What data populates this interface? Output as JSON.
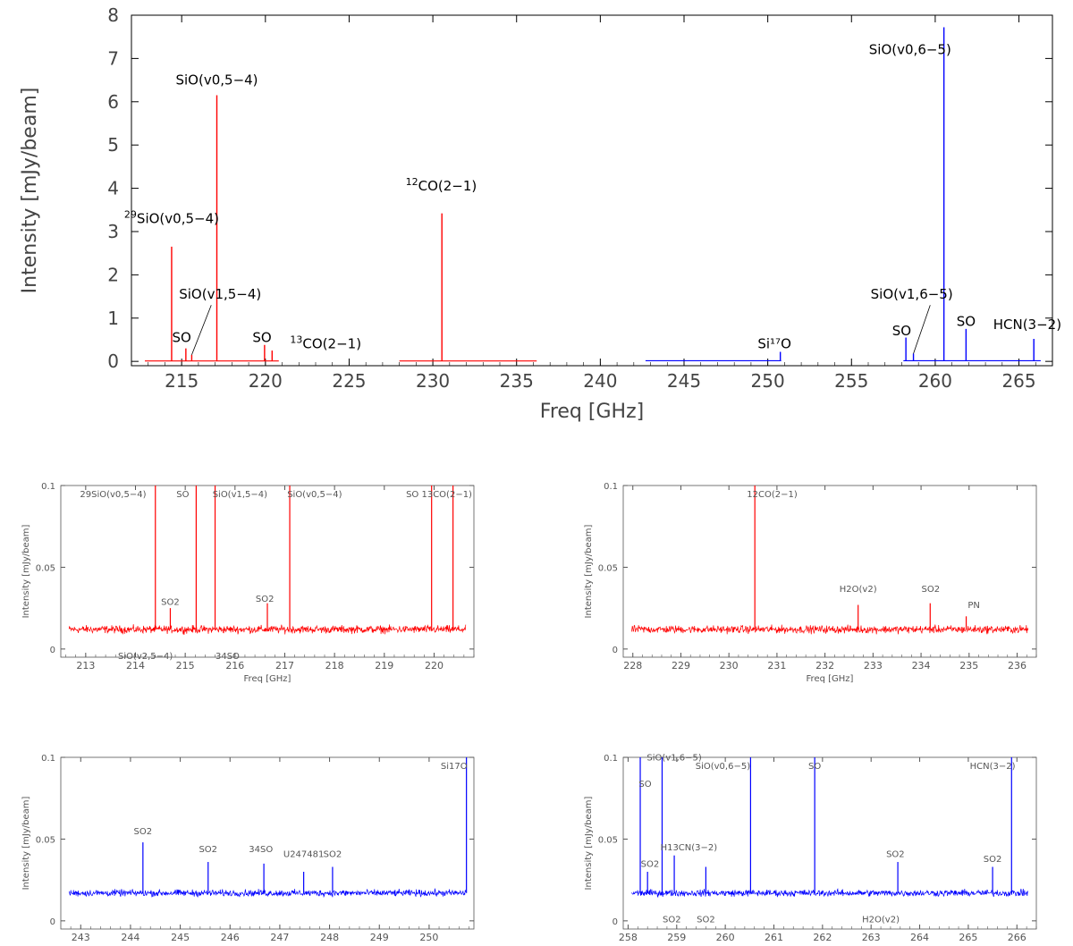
{
  "colors": {
    "lsb": "#ff0000",
    "usb": "#0000ff",
    "axis": "#000000",
    "label": "#555555"
  },
  "chart_data": [
    {
      "id": "overview",
      "type": "line",
      "xlabel": "Freq [GHz]",
      "ylabel": "Intensity [mJy/beam]",
      "xlim": [
        212,
        267
      ],
      "ylim": [
        -0.1,
        8
      ],
      "xticks": [
        215,
        220,
        225,
        230,
        235,
        240,
        245,
        250,
        255,
        260,
        265
      ],
      "yticks": [
        0,
        1,
        2,
        3,
        4,
        5,
        6,
        7,
        8
      ],
      "series": [
        {
          "color": "#ff0000",
          "x_range": [
            212.8,
            220.8
          ],
          "baseline": 0.01,
          "lines": [
            [
              214.4,
              2.65
            ],
            [
              215.25,
              0.3
            ],
            [
              215.6,
              0.15
            ],
            [
              217.1,
              6.15
            ],
            [
              219.95,
              0.38
            ],
            [
              220.4,
              0.25
            ]
          ]
        },
        {
          "color": "#ff0000",
          "x_range": [
            228.0,
            236.2
          ],
          "baseline": 0.01,
          "lines": [
            [
              230.54,
              3.42
            ]
          ]
        },
        {
          "color": "#0000ff",
          "x_range": [
            242.7,
            250.8
          ],
          "baseline": 0.015,
          "lines": [
            [
              250.75,
              0.22
            ]
          ]
        },
        {
          "color": "#0000ff",
          "x_range": [
            258.1,
            266.3
          ],
          "baseline": 0.015,
          "lines": [
            [
              258.25,
              0.55
            ],
            [
              258.7,
              0.18
            ],
            [
              260.52,
              7.72
            ],
            [
              261.84,
              0.75
            ],
            [
              265.89,
              0.52
            ]
          ]
        }
      ],
      "annotations": [
        {
          "text": "29SiO(v0,5-4)",
          "sup": "29",
          "main": "SiO(v0,5−4)",
          "x": 214.4,
          "y": 3.2
        },
        {
          "text": "SiO(v0,5-4)",
          "sup": "",
          "main": "SiO(v0,5−4)",
          "x": 217.1,
          "y": 6.4
        },
        {
          "text": "SiO(v1,5-4)",
          "sup": "",
          "main": "SiO(v1,5−4)",
          "x": 217.3,
          "y": 1.45
        },
        {
          "text": "SO",
          "sup": "",
          "main": "SO",
          "x": 215.0,
          "y": 0.45
        },
        {
          "text": "SO",
          "sup": "",
          "main": "SO",
          "x": 219.8,
          "y": 0.45
        },
        {
          "text": "13CO(2-1)",
          "sup": "13",
          "main": "CO(2−1)",
          "x": 223.6,
          "y": 0.3
        },
        {
          "text": "12CO(2-1)",
          "sup": "12",
          "main": "CO(2−1)",
          "x": 230.5,
          "y": 3.95
        },
        {
          "text": "Si17O",
          "sup": "",
          "main": "Si¹⁷O",
          "x": 250.4,
          "y": 0.3
        },
        {
          "text": "SiO(v1,6-5)",
          "sup": "",
          "main": "SiO(v1,6−5)",
          "x": 258.6,
          "y": 1.45
        },
        {
          "text": "SiO(v0,6-5)",
          "sup": "",
          "main": "SiO(v0,6−5)",
          "x": 258.5,
          "y": 7.1
        },
        {
          "text": "SO",
          "sup": "",
          "main": "SO",
          "x": 258.0,
          "y": 0.6
        },
        {
          "text": "SO",
          "sup": "",
          "main": "SO",
          "x": 261.84,
          "y": 0.82
        },
        {
          "text": "HCN(3-2)",
          "sup": "",
          "main": "HCN(3−2)",
          "x": 265.5,
          "y": 0.75
        }
      ]
    },
    {
      "id": "lsb1",
      "type": "line",
      "xlabel": "Freq [GHz]",
      "ylabel": "Intensity [mJy/beam]",
      "xlim": [
        212.5,
        220.8
      ],
      "ylim": [
        -0.005,
        0.1
      ],
      "xticks": [
        213,
        214,
        215,
        216,
        217,
        218,
        219,
        220
      ],
      "yticks": [
        0,
        0.05,
        0.1
      ],
      "color": "#ff0000",
      "baseline": 0.012,
      "noise": 0.0035,
      "lines": [
        [
          214.4,
          0.12
        ],
        [
          215.22,
          0.12
        ],
        [
          215.6,
          0.12
        ],
        [
          217.1,
          0.12
        ],
        [
          219.95,
          0.12
        ],
        [
          220.38,
          0.12
        ],
        [
          214.7,
          0.025
        ],
        [
          216.65,
          0.028
        ]
      ],
      "annotations": [
        {
          "main": "29SiO(v0,5−4)",
          "x": 213.55,
          "y": 0.093
        },
        {
          "main": "SO",
          "x": 214.95,
          "y": 0.093
        },
        {
          "main": "SiO(v1,5−4)",
          "x": 216.1,
          "y": 0.093
        },
        {
          "main": "SiO(v0,5−4)",
          "x": 217.6,
          "y": 0.093
        },
        {
          "main": "SO 13CO(2−1)",
          "x": 220.1,
          "y": 0.093
        },
        {
          "main": "SO2",
          "x": 214.7,
          "y": 0.027
        },
        {
          "main": "SO2",
          "x": 216.6,
          "y": 0.029
        },
        {
          "main": "SiO(v2,5−4)",
          "x": 214.2,
          "y": -0.006
        },
        {
          "main": "34SO",
          "x": 215.85,
          "y": -0.006
        }
      ]
    },
    {
      "id": "lsb2",
      "type": "line",
      "xlabel": "Freq [GHz]",
      "ylabel": "Intensity [mJy/beam]",
      "xlim": [
        227.8,
        236.4
      ],
      "ylim": [
        -0.005,
        0.1
      ],
      "xticks": [
        228,
        229,
        230,
        231,
        232,
        233,
        234,
        235,
        236
      ],
      "yticks": [
        0,
        0.05,
        0.1
      ],
      "color": "#ff0000",
      "baseline": 0.012,
      "noise": 0.0035,
      "lines": [
        [
          230.54,
          0.12
        ],
        [
          232.69,
          0.027
        ],
        [
          234.19,
          0.028
        ],
        [
          234.94,
          0.02
        ]
      ],
      "annotations": [
        {
          "main": "12CO(2−1)",
          "x": 230.9,
          "y": 0.093
        },
        {
          "main": "H2O(v2)",
          "x": 232.69,
          "y": 0.035
        },
        {
          "main": "SO2",
          "x": 234.2,
          "y": 0.035
        },
        {
          "main": "PN",
          "x": 235.1,
          "y": 0.025
        }
      ]
    },
    {
      "id": "usb1",
      "type": "line",
      "xlabel": "Freq [GHz]",
      "ylabel": "Intensity [mJy/beam]",
      "xlim": [
        242.6,
        250.9
      ],
      "ylim": [
        -0.005,
        0.1
      ],
      "xticks": [
        243,
        244,
        245,
        246,
        247,
        248,
        249,
        250
      ],
      "yticks": [
        0,
        0.05,
        0.1
      ],
      "color": "#0000ff",
      "baseline": 0.017,
      "noise": 0.003,
      "lines": [
        [
          244.25,
          0.048
        ],
        [
          245.56,
          0.036
        ],
        [
          246.68,
          0.035
        ],
        [
          247.48,
          0.03
        ],
        [
          248.06,
          0.033
        ],
        [
          250.75,
          0.12
        ]
      ],
      "annotations": [
        {
          "main": "SO2",
          "x": 244.25,
          "y": 0.053
        },
        {
          "main": "SO2",
          "x": 245.56,
          "y": 0.042
        },
        {
          "main": "34SO",
          "x": 246.62,
          "y": 0.042
        },
        {
          "main": "U247481",
          "x": 247.48,
          "y": 0.039
        },
        {
          "main": "SO2",
          "x": 248.06,
          "y": 0.039
        },
        {
          "main": "Si17O",
          "x": 250.5,
          "y": 0.093
        }
      ]
    },
    {
      "id": "usb2",
      "type": "line",
      "xlabel": "Freq [GHz]",
      "ylabel": "Intensity [mJy/beam]",
      "xlim": [
        257.9,
        266.4
      ],
      "ylim": [
        -0.005,
        0.1
      ],
      "xticks": [
        258,
        259,
        260,
        261,
        262,
        263,
        264,
        265,
        266
      ],
      "yticks": [
        0,
        0.05,
        0.1
      ],
      "color": "#0000ff",
      "baseline": 0.017,
      "noise": 0.003,
      "lines": [
        [
          258.25,
          0.12
        ],
        [
          258.7,
          0.12
        ],
        [
          260.52,
          0.12
        ],
        [
          261.84,
          0.12
        ],
        [
          265.89,
          0.12
        ],
        [
          258.95,
          0.04
        ],
        [
          259.6,
          0.033
        ],
        [
          263.55,
          0.036
        ],
        [
          265.5,
          0.033
        ],
        [
          258.4,
          0.03
        ]
      ],
      "annotations": [
        {
          "main": "SO",
          "x": 258.35,
          "y": 0.082
        },
        {
          "main": "SiO(v1,6−5)",
          "x": 258.95,
          "y": 0.098
        },
        {
          "main": "SiO(v0,6−5)",
          "x": 259.95,
          "y": 0.093
        },
        {
          "main": "SO",
          "x": 261.84,
          "y": 0.093
        },
        {
          "main": "HCN(3−2)",
          "x": 265.5,
          "y": 0.093
        },
        {
          "main": "SO2",
          "x": 258.45,
          "y": 0.033
        },
        {
          "main": "H13CN(3−2)",
          "x": 259.25,
          "y": 0.043
        },
        {
          "main": "SO2",
          "x": 263.5,
          "y": 0.039
        },
        {
          "main": "SO2",
          "x": 265.5,
          "y": 0.036
        },
        {
          "main": "SO2",
          "x": 258.9,
          "y": -0.001
        },
        {
          "main": "SO2",
          "x": 259.6,
          "y": -0.001
        },
        {
          "main": "H2O(v2)",
          "x": 263.2,
          "y": -0.001
        }
      ]
    }
  ]
}
